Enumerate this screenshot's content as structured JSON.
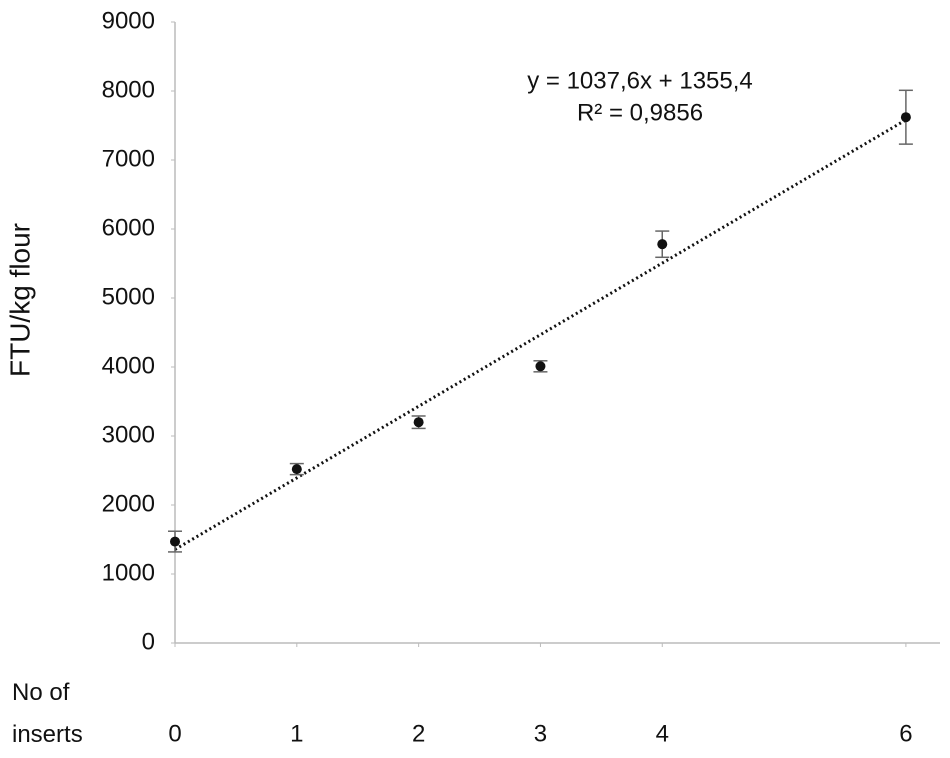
{
  "chart_data": {
    "type": "scatter",
    "x_label": "No of inserts",
    "y_label": "FTU/kg flour",
    "x": [
      0,
      1,
      2,
      3,
      4,
      6
    ],
    "values": [
      1470,
      2520,
      3200,
      4010,
      5780,
      7620
    ],
    "errors": [
      150,
      80,
      90,
      80,
      190,
      390
    ],
    "color": "#111111",
    "xlim": [
      0,
      6.28
    ],
    "xticks": [
      0,
      1,
      2,
      3,
      4,
      6
    ],
    "ylim": [
      0,
      9000
    ],
    "yticks": [
      0,
      1000,
      2000,
      3000,
      4000,
      5000,
      6000,
      7000,
      8000,
      9000
    ],
    "trendline": {
      "equation": "y = 1037,6x + 1355,4",
      "r_squared": "R² = 0,9856",
      "slope": 1037.6,
      "intercept": 1355.4
    }
  }
}
